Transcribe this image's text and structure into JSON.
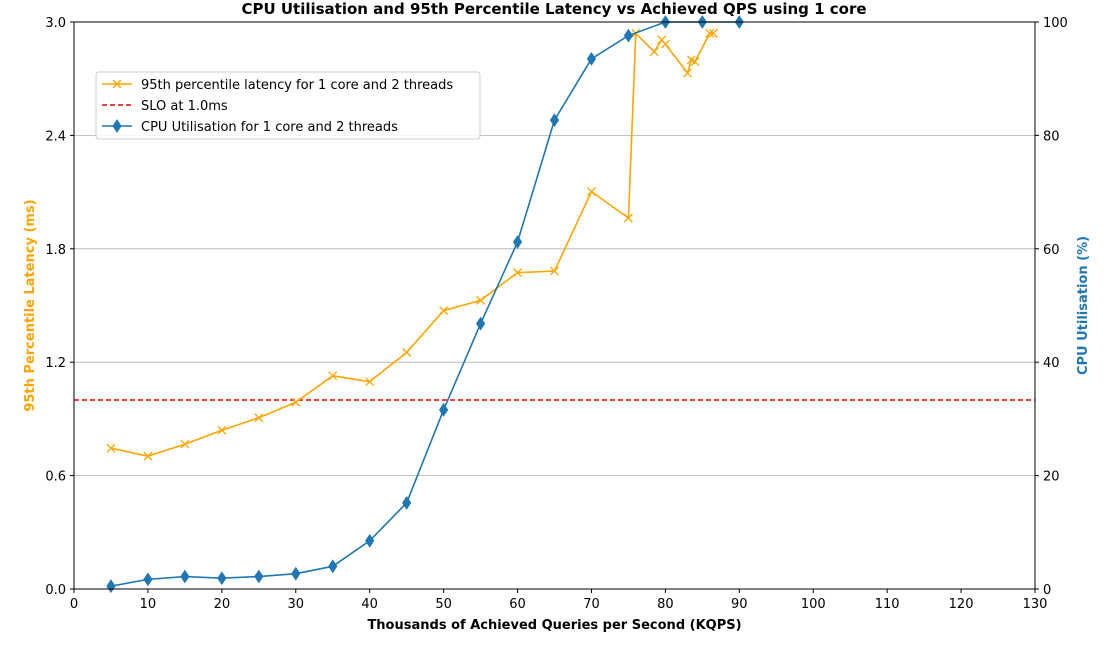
{
  "chart_data": {
    "type": "line",
    "title": "CPU Utilisation and 95th Percentile Latency vs Achieved QPS using 1 core",
    "xlabel": "Thousands of Achieved Queries per Second (KQPS)",
    "ylabel_left": "95th Percentile Latency (ms)",
    "ylabel_right": "CPU Utilisation (%)",
    "xlim": [
      0,
      130
    ],
    "ylim_left": [
      0,
      3.0
    ],
    "ylim_right": [
      0,
      100
    ],
    "x_ticks": [
      "0",
      "10",
      "20",
      "30",
      "40",
      "50",
      "60",
      "70",
      "80",
      "90",
      "100",
      "110",
      "120",
      "130"
    ],
    "y_left_ticks": [
      "0.0",
      "0.6",
      "1.2",
      "1.8",
      "2.4",
      "3.0"
    ],
    "y_right_ticks": [
      "0",
      "20",
      "40",
      "60",
      "80",
      "100"
    ],
    "grid": "horizontal",
    "legend_position": "upper-left",
    "colors": {
      "latency": "#ffa500",
      "slo": "#ff0000",
      "cpu": "#1f77b4",
      "grid": "#b0b0b0"
    },
    "series": [
      {
        "name": "95th percentile latency for 1 core and 2 threads",
        "axis": "left",
        "marker": "x",
        "points": [
          [
            5,
            0.745
          ],
          [
            10,
            0.703
          ],
          [
            15,
            0.766
          ],
          [
            20,
            0.84
          ],
          [
            25,
            0.906
          ],
          [
            30,
            0.988
          ],
          [
            35,
            1.128
          ],
          [
            40,
            1.097
          ],
          [
            45,
            1.252
          ],
          [
            50,
            1.473
          ],
          [
            55,
            1.527
          ],
          [
            60,
            1.674
          ],
          [
            65,
            1.682
          ],
          [
            70,
            2.103
          ],
          [
            75,
            1.963
          ],
          [
            76,
            2.94
          ],
          [
            78.5,
            2.843
          ],
          [
            79.5,
            2.905
          ],
          [
            80,
            2.883
          ],
          [
            83,
            2.73
          ],
          [
            83.5,
            2.8
          ],
          [
            84,
            2.79
          ],
          [
            86,
            2.94
          ],
          [
            86.5,
            2.94
          ]
        ]
      },
      {
        "name": "SLO at 1.0ms",
        "axis": "left",
        "style": "dashed",
        "y": 1.0
      },
      {
        "name": "CPU Utilisation for 1 core and 2 threads",
        "axis": "right",
        "marker": "diamond",
        "points": [
          [
            5,
            0.5
          ],
          [
            10,
            1.7
          ],
          [
            15,
            2.2
          ],
          [
            20,
            1.9
          ],
          [
            25,
            2.2
          ],
          [
            30,
            2.7
          ],
          [
            35,
            4.0
          ],
          [
            40,
            8.5
          ],
          [
            45,
            15.2
          ],
          [
            50,
            31.6
          ],
          [
            55,
            46.8
          ],
          [
            60,
            61.2
          ],
          [
            65,
            82.7
          ],
          [
            70,
            93.5
          ],
          [
            75,
            97.6
          ],
          [
            80,
            100
          ],
          [
            85,
            100
          ],
          [
            90,
            100
          ]
        ]
      }
    ]
  }
}
